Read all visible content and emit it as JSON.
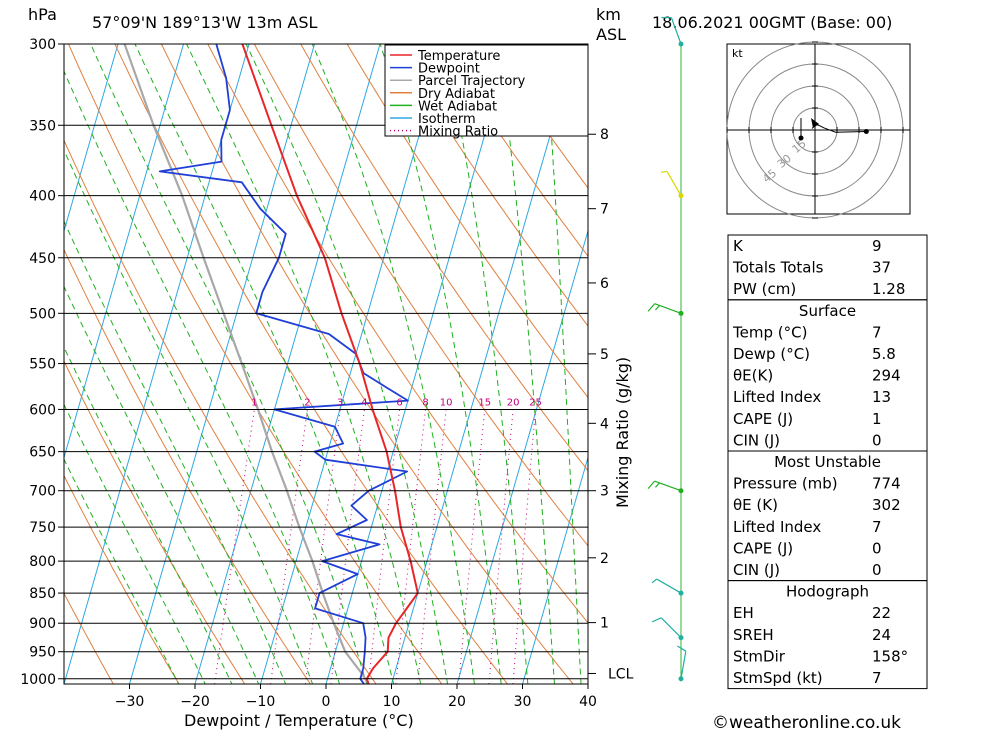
{
  "header": {
    "pressure_unit": "hPa",
    "location": "57°09'N  189°13'W  13m  ASL",
    "height_unit": "km",
    "height_ref": "ASL",
    "datetime": "18.06.2021  00GMT  (Base: 00)"
  },
  "colors": {
    "temperature": "#e8262a",
    "dewpoint": "#1f3fd6",
    "parcel": "#a8a8a8",
    "dry_adiabat": "#e08040",
    "wet_adiabat": "#20b020",
    "isotherm": "#30a8e0",
    "mixing_ratio": "#c0007a",
    "wind_profile": "#30b030"
  },
  "chart_data": {
    "type": "line",
    "xlabel": "Dewpoint / Temperature (°C)",
    "ylabel_right": "Mixing Ratio (g/kg)",
    "x_ticks": [
      -30,
      -20,
      -10,
      0,
      10,
      20,
      30,
      40
    ],
    "xlim": [
      -40,
      40
    ],
    "pressure_levels": [
      300,
      350,
      400,
      450,
      500,
      550,
      600,
      650,
      700,
      750,
      800,
      850,
      900,
      950,
      1000
    ],
    "height_ticks_km": [
      {
        "label": "8",
        "p": 356
      },
      {
        "label": "7",
        "p": 410
      },
      {
        "label": "6",
        "p": 472
      },
      {
        "label": "5",
        "p": 540
      },
      {
        "label": "4",
        "p": 616
      },
      {
        "label": "3",
        "p": 700
      },
      {
        "label": "2",
        "p": 795
      },
      {
        "label": "1",
        "p": 899
      },
      {
        "label": "LCL",
        "p": 990
      }
    ],
    "mixing_ratio_labels": [
      "1",
      "2",
      "3",
      "4",
      "6",
      "8",
      "10",
      "15",
      "20",
      "25"
    ],
    "mixing_ratio_values": [
      1,
      2,
      3,
      4,
      6,
      8,
      10,
      15,
      20,
      25
    ],
    "legend": [
      {
        "name": "Temperature",
        "style": "solid",
        "color_key": "temperature"
      },
      {
        "name": "Dewpoint",
        "style": "solid",
        "color_key": "dewpoint"
      },
      {
        "name": "Parcel Trajectory",
        "style": "solid",
        "color_key": "parcel"
      },
      {
        "name": "Dry Adiabat",
        "style": "solid",
        "color_key": "dry_adiabat"
      },
      {
        "name": "Wet Adiabat",
        "style": "solid",
        "color_key": "wet_adiabat"
      },
      {
        "name": "Isotherm",
        "style": "solid",
        "color_key": "isotherm"
      },
      {
        "name": "Mixing Ratio",
        "style": "dotted",
        "color_key": "mixing_ratio"
      }
    ],
    "series": [
      {
        "name": "Temperature",
        "points": [
          [
            1010,
            6.5
          ],
          [
            1000,
            6.0
          ],
          [
            980,
            6.5
          ],
          [
            950,
            8.0
          ],
          [
            925,
            7.5
          ],
          [
            900,
            8.0
          ],
          [
            875,
            9.0
          ],
          [
            850,
            10.0
          ],
          [
            800,
            7.5
          ],
          [
            750,
            4.5
          ],
          [
            700,
            2.0
          ],
          [
            650,
            -1.0
          ],
          [
            600,
            -5.0
          ],
          [
            550,
            -9.0
          ],
          [
            500,
            -14.0
          ],
          [
            450,
            -19.0
          ],
          [
            400,
            -26.0
          ],
          [
            350,
            -33.0
          ],
          [
            300,
            -41.0
          ]
        ]
      },
      {
        "name": "Dewpoint",
        "points": [
          [
            1010,
            5.8
          ],
          [
            1000,
            5.0
          ],
          [
            980,
            5.0
          ],
          [
            950,
            4.5
          ],
          [
            925,
            4.0
          ],
          [
            900,
            3.0
          ],
          [
            875,
            -5.0
          ],
          [
            850,
            -5.0
          ],
          [
            820,
            0.0
          ],
          [
            800,
            -6.0
          ],
          [
            775,
            2.0
          ],
          [
            760,
            -5.0
          ],
          [
            740,
            -1.0
          ],
          [
            720,
            -4.0
          ],
          [
            700,
            -2.0
          ],
          [
            675,
            3.0
          ],
          [
            660,
            -10.0
          ],
          [
            650,
            -12.0
          ],
          [
            640,
            -8.0
          ],
          [
            620,
            -10.0
          ],
          [
            600,
            -20.0
          ],
          [
            590,
            0.0
          ],
          [
            575,
            -4.0
          ],
          [
            560,
            -8.0
          ],
          [
            540,
            -10.0
          ],
          [
            520,
            -15.0
          ],
          [
            500,
            -27.0
          ],
          [
            480,
            -27.0
          ],
          [
            450,
            -26.0
          ],
          [
            430,
            -26.0
          ],
          [
            410,
            -31.0
          ],
          [
            390,
            -35.0
          ],
          [
            382,
            -48.0
          ],
          [
            375,
            -39.0
          ],
          [
            360,
            -40.0
          ],
          [
            340,
            -40.0
          ],
          [
            320,
            -42.0
          ],
          [
            300,
            -45.0
          ]
        ]
      },
      {
        "name": "Parcel Trajectory",
        "points": [
          [
            1010,
            6.5
          ],
          [
            990,
            5.0
          ],
          [
            950,
            1.5
          ],
          [
            900,
            -1.5
          ],
          [
            850,
            -4.5
          ],
          [
            800,
            -7.5
          ],
          [
            750,
            -11.0
          ],
          [
            700,
            -14.5
          ],
          [
            650,
            -18.5
          ],
          [
            600,
            -22.5
          ],
          [
            550,
            -27.0
          ],
          [
            500,
            -32.0
          ],
          [
            450,
            -37.5
          ],
          [
            400,
            -43.5
          ],
          [
            350,
            -51.0
          ],
          [
            300,
            -59.0
          ]
        ]
      }
    ]
  },
  "hodograph": {
    "unit": "kt",
    "ring_labels": [
      "15",
      "30",
      "45"
    ],
    "points": [
      [
        -4,
        2
      ],
      [
        1,
        8
      ],
      [
        6,
        6
      ],
      [
        12,
        3
      ],
      [
        28,
        -3
      ],
      [
        70,
        -2
      ]
    ]
  },
  "wind_barbs": [
    {
      "p": 300,
      "speed": 10,
      "dir": 200
    },
    {
      "p": 400,
      "speed": 5,
      "dir": 210
    },
    {
      "p": 500,
      "speed": 15,
      "dir": 250
    },
    {
      "p": 700,
      "speed": 15,
      "dir": 250
    },
    {
      "p": 850,
      "speed": 5,
      "dir": 240
    },
    {
      "p": 925,
      "speed": 10,
      "dir": 225
    },
    {
      "p": 1000,
      "speed": 10,
      "dir": 170
    }
  ],
  "indices": {
    "general": [
      {
        "label": "K",
        "value": "9"
      },
      {
        "label": "Totals Totals",
        "value": "37"
      },
      {
        "label": "PW (cm)",
        "value": "1.28"
      }
    ],
    "surface": {
      "title": "Surface",
      "rows": [
        {
          "label": "Temp (°C)",
          "value": "7"
        },
        {
          "label": "Dewp (°C)",
          "value": "5.8"
        },
        {
          "label": "θE(K)",
          "value": "294"
        },
        {
          "label": "Lifted Index",
          "value": "13"
        },
        {
          "label": "CAPE (J)",
          "value": "1"
        },
        {
          "label": "CIN (J)",
          "value": "0"
        }
      ]
    },
    "most_unstable": {
      "title": "Most Unstable",
      "rows": [
        {
          "label": "Pressure (mb)",
          "value": "774"
        },
        {
          "label": "θE (K)",
          "value": "302"
        },
        {
          "label": "Lifted Index",
          "value": "7"
        },
        {
          "label": "CAPE (J)",
          "value": "0"
        },
        {
          "label": "CIN (J)",
          "value": "0"
        }
      ]
    },
    "hodograph_table": {
      "title": "Hodograph",
      "rows": [
        {
          "label": "EH",
          "value": "22"
        },
        {
          "label": "SREH",
          "value": "24"
        },
        {
          "label": "StmDir",
          "value": "158°"
        },
        {
          "label": "StmSpd (kt)",
          "value": "7"
        }
      ]
    }
  },
  "footer": {
    "copyright": "©weatheronline.co.uk"
  }
}
